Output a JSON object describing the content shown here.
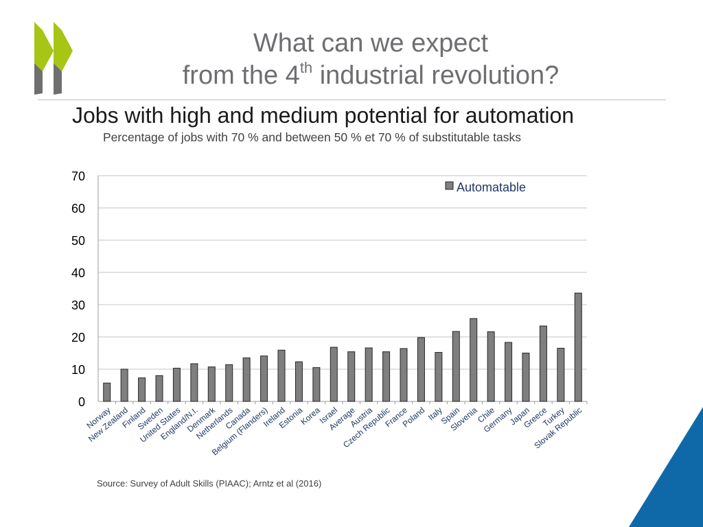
{
  "slide": {
    "title_line1": "What can we expect",
    "title_line2_pre": "from the 4",
    "title_line2_sup": "th",
    "title_line2_post": " industrial revolution?",
    "heading": "Jobs with high and medium potential for automation",
    "caption": "Percentage of jobs with 70 % and between 50 % et 70 % of substitutable tasks",
    "source": "Source: Survey of Adult Skills (PIAAC); Arntz et al (2016)"
  },
  "colors": {
    "logo_green": "#a6c515",
    "logo_grey": "#6f6f6f",
    "bar_fill": "#7f7f7f",
    "gridline": "#c6c6c6",
    "legend_text": "#1f3864",
    "corner_blue": "#0f69a8"
  },
  "chart_data": {
    "type": "bar",
    "categories": [
      "Norway",
      "New Zealand",
      "Finland",
      "Sweden",
      "United States",
      "England/N.I.",
      "Denmark",
      "Netherlands",
      "Canada",
      "Belgium (Flanders)",
      "Ireland",
      "Estonia",
      "Korea",
      "Israel",
      "Average",
      "Austria",
      "Czech Republic",
      "France",
      "Poland",
      "Italy",
      "Spain",
      "Slovenia",
      "Chile",
      "Germany",
      "Japan",
      "Greece",
      "Turkey",
      "Slovak Republic"
    ],
    "series": [
      {
        "name": "Automatable",
        "values": [
          5.7,
          10.0,
          7.3,
          8.0,
          10.3,
          11.7,
          10.7,
          11.4,
          13.5,
          14.1,
          15.9,
          12.3,
          10.5,
          16.8,
          15.4,
          16.6,
          15.4,
          16.4,
          19.8,
          15.2,
          21.7,
          25.7,
          21.6,
          18.3,
          15.0,
          23.4,
          16.5,
          33.6
        ]
      }
    ],
    "ylim": [
      0,
      70
    ],
    "yticks": [
      0,
      10,
      20,
      30,
      40,
      50,
      60,
      70
    ],
    "grid": true,
    "legend": "top-right"
  }
}
